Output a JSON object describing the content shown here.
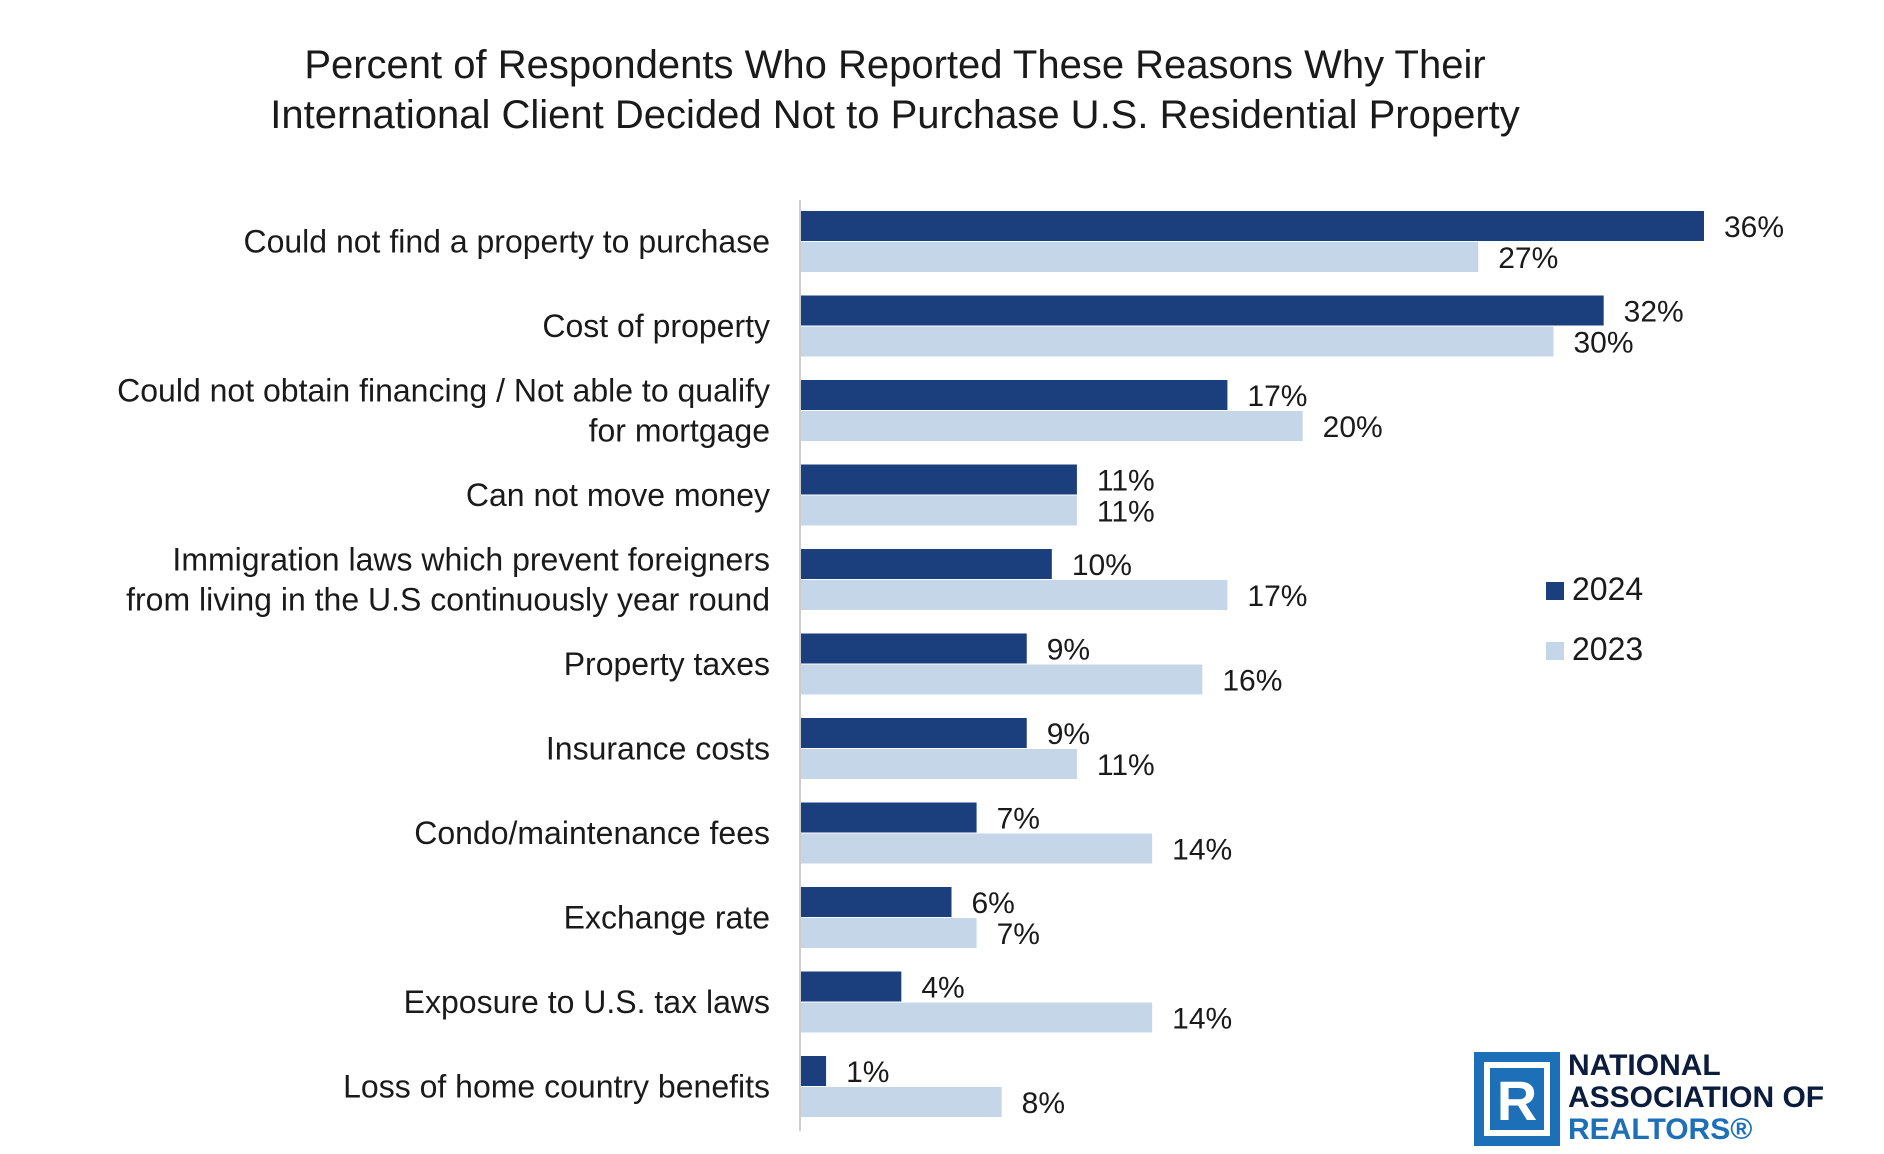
{
  "chart_data": {
    "type": "bar",
    "orientation": "horizontal",
    "title_lines": [
      "Percent of Respondents Who Reported These Reasons Why Their",
      "International Client Decided Not to Purchase U.S. Residential Property"
    ],
    "categories": [
      [
        "Could not find a property to purchase"
      ],
      [
        "Cost of property"
      ],
      [
        "Could not obtain financing / Not able to qualify",
        "for mortgage"
      ],
      [
        "Can not move money"
      ],
      [
        "Immigration laws which prevent foreigners",
        "from living in the U.S continuously year round"
      ],
      [
        "Property taxes"
      ],
      [
        "Insurance costs"
      ],
      [
        "Condo/maintenance fees"
      ],
      [
        "Exchange rate"
      ],
      [
        "Exposure to U.S. tax laws"
      ],
      [
        "Loss of home country benefits"
      ]
    ],
    "series": [
      {
        "name": "2024",
        "color": "#1b3f7d",
        "values": [
          36,
          32,
          17,
          11,
          10,
          9,
          9,
          7,
          6,
          4,
          1
        ],
        "labels": [
          "36%",
          "32%",
          "17%",
          "11%",
          "10%",
          "9%",
          "9%",
          "7%",
          "6%",
          "4%",
          "1%"
        ]
      },
      {
        "name": "2023",
        "color": "#c5d6e9",
        "values": [
          27,
          30,
          20,
          11,
          17,
          16,
          11,
          14,
          7,
          14,
          8
        ],
        "labels": [
          "27%",
          "30%",
          "20%",
          "11%",
          "17%",
          "16%",
          "11%",
          "14%",
          "7%",
          "14%",
          "8%"
        ]
      }
    ],
    "xlim": [
      0,
      36
    ],
    "grid": false,
    "legend_position": "right"
  },
  "logo": {
    "mark": "R",
    "lines": [
      "NATIONAL",
      "ASSOCIATION OF",
      "REALTORS®"
    ]
  }
}
